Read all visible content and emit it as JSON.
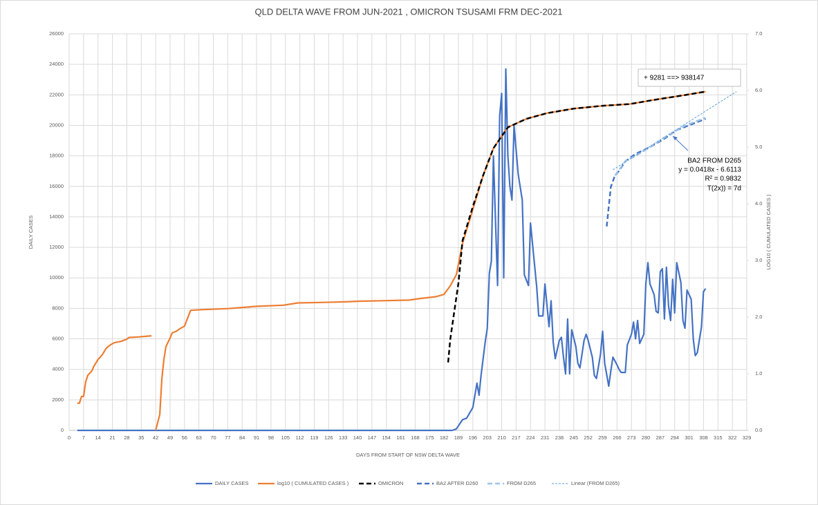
{
  "chart_data": {
    "type": "line",
    "title": "QLD DELTA WAVE FROM JUN-2021 , OMICRON TSUSAMI FRM DEC-2021",
    "x_label": "DAYS FROM START OF NSW DELTA WAVE",
    "y_label": "DAILY CASES",
    "y2_label": "LOG10 ( CUMULATED CASES )",
    "xlim": [
      0,
      329
    ],
    "xticks": [
      0,
      7,
      14,
      21,
      28,
      35,
      42,
      49,
      56,
      63,
      70,
      77,
      84,
      91,
      98,
      105,
      112,
      119,
      126,
      133,
      140,
      147,
      154,
      161,
      168,
      175,
      182,
      189,
      196,
      203,
      210,
      217,
      224,
      231,
      238,
      245,
      252,
      259,
      266,
      273,
      280,
      287,
      294,
      301,
      308,
      315,
      322,
      329
    ],
    "ylim": [
      0,
      26000
    ],
    "yticks": [
      0,
      2000,
      4000,
      6000,
      8000,
      10000,
      12000,
      14000,
      16000,
      18000,
      20000,
      22000,
      24000,
      26000
    ],
    "y2lim": [
      0,
      7
    ],
    "y2ticks": [
      {
        "value": 0,
        "label": "0.0"
      },
      {
        "value": 1,
        "label": "1.0"
      },
      {
        "value": 2,
        "label": "2.0"
      },
      {
        "value": 3,
        "label": "3.0"
      },
      {
        "value": 4,
        "label": "4.0"
      },
      {
        "value": 5,
        "label": "5.0"
      },
      {
        "value": 6,
        "label": "6.0"
      },
      {
        "value": 7,
        "label": "7.0"
      }
    ],
    "grid": true,
    "legend": "bottom",
    "series": [
      {
        "name": "DAILY CASES",
        "color": "#4472c4",
        "line_style": "solid",
        "x": [
          4,
          186,
          188,
          191,
          193,
          196,
          198,
          199,
          200,
          202,
          203,
          204,
          205,
          206,
          208,
          209,
          210,
          211,
          212,
          213,
          214,
          215,
          216,
          218,
          220,
          221,
          223,
          224,
          226,
          227,
          228,
          230,
          231,
          233,
          234,
          235,
          236,
          238,
          239,
          240,
          241,
          242,
          243,
          244,
          246,
          247,
          248,
          250,
          251,
          252,
          254,
          255,
          256,
          258,
          259,
          260,
          262,
          263,
          264,
          266,
          267,
          268,
          270,
          271,
          273,
          274,
          275,
          276,
          277,
          279,
          280,
          281,
          282,
          284,
          285,
          286,
          287,
          288,
          289,
          290,
          291,
          292,
          293,
          294,
          295,
          297,
          298,
          299,
          300,
          302,
          303,
          304,
          305,
          307,
          308,
          309
        ],
        "values": [
          0,
          0,
          100,
          700,
          800,
          1500,
          3100,
          2300,
          3600,
          5800,
          6700,
          10300,
          11100,
          18000,
          9500,
          20600,
          22100,
          10000,
          23700,
          18000,
          16000,
          15100,
          20000,
          16800,
          15100,
          10200,
          9500,
          13600,
          10800,
          9400,
          7500,
          7500,
          9600,
          6800,
          8500,
          5800,
          4700,
          5900,
          6100,
          4800,
          3700,
          7300,
          3700,
          6600,
          5500,
          4400,
          4100,
          5900,
          6300,
          5900,
          4800,
          3600,
          3400,
          5000,
          6500,
          4400,
          2900,
          3900,
          4800,
          4300,
          4000,
          3800,
          3800,
          5600,
          6300,
          7100,
          6000,
          7200,
          5700,
          6300,
          9600,
          11000,
          9600,
          8900,
          7800,
          7700,
          10400,
          10600,
          7300,
          10700,
          8200,
          7200,
          9900,
          7700,
          11000,
          9700,
          7200,
          6700,
          9200,
          8600,
          6000,
          4900,
          5100,
          6800,
          9100,
          9300
        ]
      },
      {
        "name": "log10 ( CUMULATED CASES )",
        "color": "#ed7d31",
        "line_style": "solid",
        "axis": "y2",
        "x": [
          4,
          5,
          6,
          7,
          8,
          9,
          11,
          12,
          14,
          16,
          18,
          20,
          22,
          25,
          28,
          29,
          34,
          37,
          40,
          41,
          42,
          44,
          45,
          46,
          47,
          49,
          50,
          52,
          54,
          56,
          59,
          64,
          77,
          84,
          91,
          104,
          111,
          124,
          134,
          141,
          154,
          165,
          171,
          178,
          182,
          185,
          188,
          191,
          196,
          201,
          206,
          213,
          222,
          232,
          245,
          259,
          272,
          285,
          299,
          309
        ],
        "values": [
          0.48,
          0.48,
          0.6,
          0.6,
          0.85,
          0.97,
          1.05,
          1.13,
          1.25,
          1.33,
          1.45,
          1.51,
          1.55,
          1.57,
          1.61,
          1.64,
          1.65,
          1.66,
          1.67,
          null,
          0.0,
          0.28,
          0.9,
          1.25,
          1.48,
          1.63,
          1.72,
          1.75,
          1.8,
          1.84,
          2.12,
          2.13,
          2.15,
          2.17,
          2.19,
          2.21,
          2.25,
          2.26,
          2.27,
          2.28,
          2.29,
          2.3,
          2.33,
          2.36,
          2.4,
          2.55,
          2.75,
          3.3,
          3.9,
          4.5,
          4.98,
          5.35,
          5.5,
          5.6,
          5.68,
          5.73,
          5.76,
          5.84,
          5.92,
          5.98
        ]
      },
      {
        "name": "OMICRON",
        "color": "#000000",
        "line_style": "dashed",
        "axis": "y2",
        "x": [
          184,
          185,
          187,
          189,
          191,
          196,
          201,
          206,
          213,
          222,
          232,
          245,
          259,
          272,
          285,
          299,
          309
        ],
        "values": [
          1.2,
          1.6,
          2.1,
          2.6,
          3.35,
          3.95,
          4.5,
          4.98,
          5.35,
          5.5,
          5.6,
          5.68,
          5.73,
          5.76,
          5.84,
          5.92,
          5.98
        ]
      },
      {
        "name": "BA2 AFTER D260",
        "color": "#4472c4",
        "line_style": "dashed",
        "axis": "y2",
        "x": [
          261,
          262,
          263,
          265,
          267,
          270,
          275,
          282,
          289,
          295,
          302,
          309
        ],
        "values": [
          3.6,
          3.95,
          4.3,
          4.5,
          4.58,
          4.75,
          4.88,
          5.0,
          5.15,
          5.3,
          5.4,
          5.5
        ]
      },
      {
        "name": "FROM D265",
        "color": "#9dc3e6",
        "line_style": "dashed",
        "axis": "y2",
        "x": [
          265,
          270,
          279,
          289,
          299,
          309
        ],
        "values": [
          4.5,
          4.75,
          4.93,
          5.17,
          5.38,
          5.52
        ]
      },
      {
        "name": "Linear (FROM D265)",
        "color": "#5b9bd5",
        "line_style": "dotted",
        "axis": "y2",
        "x": [
          264,
          324
        ],
        "values": [
          4.6,
          5.98
        ]
      }
    ],
    "annotations": {
      "box": "+  9281 ==> 938147",
      "fit": [
        "BA2 FROM D265",
        "y = 0.0418x - 6.6113",
        "R² = 0.9832",
        "T(2x)) = 7d"
      ]
    }
  }
}
